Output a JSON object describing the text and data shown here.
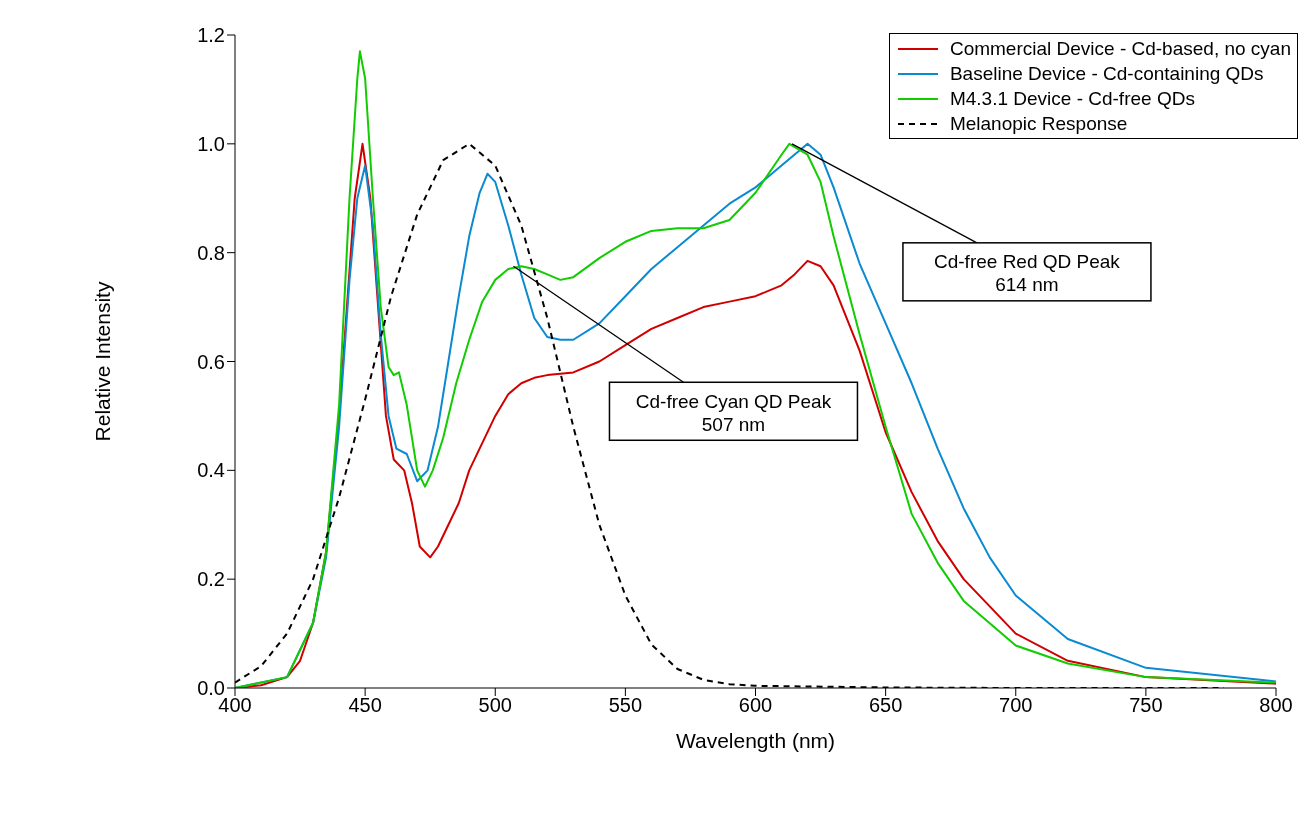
{
  "chart_data": {
    "type": "line",
    "xlabel": "Wavelength (nm)",
    "ylabel": "Relative Intensity",
    "xlim": [
      400,
      800
    ],
    "ylim": [
      0,
      1.2
    ],
    "xticks": [
      400,
      450,
      500,
      550,
      600,
      650,
      700,
      750,
      800
    ],
    "yticks": [
      {
        "value": 0,
        "label": "0.0"
      },
      {
        "value": 0.2,
        "label": "0.2"
      },
      {
        "value": 0.4,
        "label": "0.4"
      },
      {
        "value": 0.6,
        "label": "0.6"
      },
      {
        "value": 0.8,
        "label": "0.8"
      },
      {
        "value": 1,
        "label": "1.0"
      },
      {
        "value": 1.2,
        "label": "1.2"
      }
    ],
    "grid": false,
    "legend": "top right",
    "marker": "none",
    "series": [
      {
        "name": "Commercial Device - Cd-based, no cyan",
        "color": "#d00000",
        "line_style": "solid",
        "x": [
          400,
          410,
          420,
          425,
          430,
          435,
          440,
          443,
          446,
          449,
          452,
          455,
          458,
          461,
          465,
          468,
          471,
          475,
          478,
          482,
          486,
          490,
          495,
          500,
          505,
          510,
          515,
          520,
          530,
          540,
          550,
          560,
          570,
          580,
          590,
          600,
          610,
          615,
          620,
          625,
          630,
          640,
          650,
          660,
          670,
          680,
          700,
          720,
          750,
          800
        ],
        "values": [
          0,
          0.005,
          0.02,
          0.05,
          0.12,
          0.25,
          0.5,
          0.7,
          0.9,
          1,
          0.9,
          0.7,
          0.5,
          0.42,
          0.4,
          0.34,
          0.26,
          0.24,
          0.26,
          0.3,
          0.34,
          0.4,
          0.45,
          0.5,
          0.54,
          0.56,
          0.57,
          0.575,
          0.58,
          0.6,
          0.63,
          0.66,
          0.68,
          0.7,
          0.71,
          0.72,
          0.74,
          0.76,
          0.785,
          0.775,
          0.74,
          0.62,
          0.47,
          0.36,
          0.27,
          0.2,
          0.1,
          0.05,
          0.02,
          0.008
        ]
      },
      {
        "name": "Baseline Device - Cd-containing QDs",
        "color": "#0a8ad0",
        "line_style": "solid",
        "x": [
          400,
          420,
          430,
          435,
          440,
          444,
          447,
          450,
          453,
          456,
          459,
          462,
          466,
          470,
          474,
          478,
          482,
          486,
          490,
          494,
          497,
          500,
          505,
          510,
          515,
          520,
          525,
          530,
          540,
          550,
          560,
          570,
          580,
          590,
          600,
          610,
          620,
          625,
          630,
          640,
          650,
          660,
          670,
          680,
          690,
          700,
          720,
          750,
          800
        ],
        "values": [
          0,
          0.02,
          0.12,
          0.24,
          0.48,
          0.75,
          0.9,
          0.96,
          0.85,
          0.65,
          0.5,
          0.44,
          0.43,
          0.38,
          0.4,
          0.48,
          0.6,
          0.72,
          0.83,
          0.91,
          0.945,
          0.93,
          0.85,
          0.76,
          0.68,
          0.645,
          0.64,
          0.64,
          0.67,
          0.72,
          0.77,
          0.81,
          0.85,
          0.89,
          0.92,
          0.96,
          1,
          0.98,
          0.92,
          0.78,
          0.67,
          0.56,
          0.44,
          0.33,
          0.24,
          0.17,
          0.09,
          0.037,
          0.012
        ]
      },
      {
        "name": "M4.3.1 Device - Cd-free QDs",
        "color": "#11cc00",
        "line_style": "solid",
        "x": [
          400,
          420,
          430,
          435,
          440,
          444,
          447,
          448,
          450,
          453,
          456,
          459,
          461,
          463,
          466,
          470,
          473,
          476,
          480,
          485,
          490,
          495,
          500,
          505,
          510,
          515,
          520,
          525,
          530,
          540,
          550,
          560,
          570,
          580,
          590,
          600,
          610,
          613,
          620,
          625,
          630,
          640,
          650,
          660,
          670,
          680,
          700,
          720,
          750,
          800
        ],
        "values": [
          0,
          0.02,
          0.12,
          0.25,
          0.52,
          0.9,
          1.12,
          1.17,
          1.12,
          0.9,
          0.7,
          0.59,
          0.575,
          0.58,
          0.52,
          0.4,
          0.37,
          0.4,
          0.46,
          0.56,
          0.64,
          0.71,
          0.75,
          0.77,
          0.775,
          0.77,
          0.76,
          0.75,
          0.755,
          0.79,
          0.82,
          0.84,
          0.845,
          0.845,
          0.86,
          0.91,
          0.98,
          1,
          0.98,
          0.93,
          0.83,
          0.65,
          0.48,
          0.32,
          0.23,
          0.16,
          0.078,
          0.045,
          0.02,
          0.01
        ]
      },
      {
        "name": "Melanopic Response",
        "color": "#000000",
        "line_style": "dashed",
        "x": [
          400,
          410,
          420,
          430,
          440,
          450,
          460,
          470,
          480,
          490,
          500,
          510,
          520,
          530,
          540,
          550,
          560,
          570,
          580,
          590,
          600,
          650,
          700,
          780
        ],
        "values": [
          0.01,
          0.04,
          0.1,
          0.2,
          0.35,
          0.53,
          0.72,
          0.87,
          0.97,
          1,
          0.96,
          0.85,
          0.68,
          0.48,
          0.3,
          0.17,
          0.08,
          0.035,
          0.015,
          0.007,
          0.004,
          0.001,
          0,
          0
        ]
      }
    ],
    "annotations": [
      {
        "text": "Cd-free Cyan QD Peak\n507 nm",
        "x": 507,
        "y": 0.775
      },
      {
        "text": "Cd-free Red QD Peak\n614 nm",
        "x": 614,
        "y": 1
      }
    ]
  }
}
